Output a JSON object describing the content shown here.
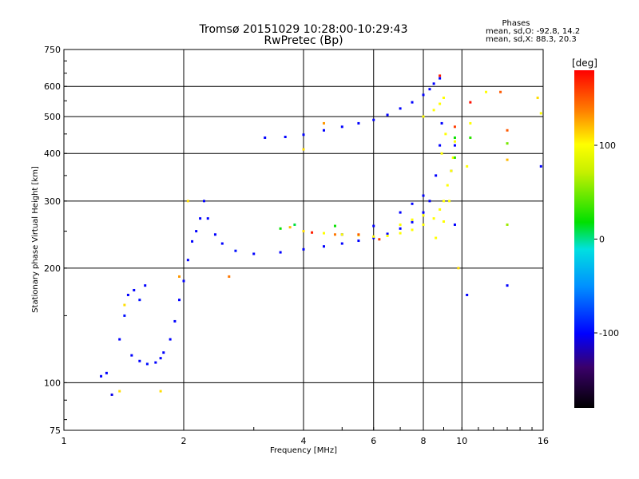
{
  "header": {
    "title": "Tromsø 20151029 10:28:00-10:29:43",
    "subtitle": "RwPretec (Bp)"
  },
  "stats": {
    "heading": "Phases",
    "line1": "mean, sd,O: -92.8, 14.2",
    "line2": "mean, sd,X: 88.3, 20.3"
  },
  "colorbar": {
    "unit": "[deg]",
    "ticks": [
      "100",
      "0",
      "-100"
    ],
    "tick_values": [
      100,
      0,
      -100
    ],
    "range": [
      -180,
      180
    ]
  },
  "chart_data": {
    "type": "scatter",
    "xlabel": "Frequency [MHz]",
    "ylabel": "Stationary phase Virtual Height [km]",
    "xscale": "log",
    "yscale": "log",
    "xlim": [
      1,
      16
    ],
    "ylim": [
      75,
      750
    ],
    "xticks": [
      1,
      2,
      4,
      6,
      8,
      10,
      16
    ],
    "xtick_labels": [
      "1",
      "2",
      "4",
      "6",
      "8",
      "10",
      "16"
    ],
    "yticks": [
      75,
      100,
      200,
      300,
      400,
      500,
      600,
      750
    ],
    "ytick_labels": [
      "75",
      "100",
      "200",
      "300",
      "400",
      "500",
      "600",
      "750"
    ],
    "grid": true,
    "series": [
      {
        "points": [
          [
            1.24,
            104,
            -100
          ],
          [
            1.28,
            106,
            -100
          ],
          [
            1.32,
            93,
            -105
          ],
          [
            1.38,
            130,
            -100
          ],
          [
            1.42,
            150,
            -95
          ],
          [
            1.45,
            170,
            -100
          ],
          [
            1.5,
            175,
            -100
          ],
          [
            1.55,
            165,
            -95
          ],
          [
            1.6,
            180,
            -100
          ],
          [
            1.48,
            118,
            -100
          ],
          [
            1.55,
            114,
            -100
          ],
          [
            1.62,
            112,
            -95
          ],
          [
            1.7,
            113,
            -100
          ],
          [
            1.75,
            116,
            -100
          ],
          [
            1.78,
            120,
            -100
          ],
          [
            1.85,
            130,
            -100
          ],
          [
            1.9,
            145,
            -100
          ],
          [
            1.95,
            165,
            -100
          ],
          [
            2.0,
            185,
            -100
          ],
          [
            2.05,
            210,
            -100
          ],
          [
            2.1,
            235,
            -100
          ],
          [
            2.15,
            250,
            -100
          ],
          [
            2.2,
            270,
            -100
          ],
          [
            2.25,
            300,
            -100
          ],
          [
            2.3,
            270,
            -100
          ],
          [
            2.4,
            245,
            -100
          ],
          [
            2.5,
            232,
            -100
          ],
          [
            2.7,
            222,
            -95
          ],
          [
            3.0,
            218,
            -100
          ],
          [
            3.5,
            220,
            -100
          ],
          [
            4.0,
            224,
            -100
          ],
          [
            4.5,
            228,
            -100
          ],
          [
            5.0,
            232,
            -100
          ],
          [
            5.5,
            236,
            -100
          ],
          [
            6.0,
            240,
            -100
          ],
          [
            6.5,
            246,
            -100
          ],
          [
            7.0,
            254,
            -100
          ],
          [
            7.5,
            264,
            -100
          ],
          [
            8.0,
            280,
            -100
          ],
          [
            8.3,
            300,
            -100
          ],
          [
            8.6,
            350,
            -100
          ],
          [
            8.8,
            420,
            -100
          ],
          [
            8.9,
            480,
            -100
          ],
          [
            5.0,
            245,
            -100
          ],
          [
            6.0,
            258,
            -100
          ],
          [
            7.0,
            280,
            -100
          ],
          [
            7.5,
            295,
            -100
          ],
          [
            8.0,
            310,
            -100
          ],
          [
            3.2,
            440,
            -100
          ],
          [
            3.6,
            442,
            -100
          ],
          [
            4.0,
            448,
            -100
          ],
          [
            4.5,
            460,
            -100
          ],
          [
            5.0,
            470,
            -100
          ],
          [
            5.5,
            480,
            -100
          ],
          [
            6.0,
            490,
            -100
          ],
          [
            6.5,
            505,
            -100
          ],
          [
            7.0,
            525,
            -100
          ],
          [
            7.5,
            545,
            -100
          ],
          [
            8.0,
            570,
            -100
          ],
          [
            8.3,
            590,
            -100
          ],
          [
            8.5,
            610,
            -100
          ],
          [
            8.8,
            630,
            -100
          ],
          [
            9.4,
            360,
            -100
          ],
          [
            9.6,
            420,
            -100
          ],
          [
            9.6,
            260,
            -100
          ],
          [
            10.3,
            170,
            -100
          ],
          [
            13.0,
            180,
            -100
          ],
          [
            15.8,
            370,
            -100
          ]
        ]
      },
      {
        "points": [
          [
            1.38,
            95,
            110
          ],
          [
            1.42,
            160,
            110
          ],
          [
            1.75,
            95,
            110
          ],
          [
            2.05,
            300,
            110
          ],
          [
            3.7,
            256,
            120
          ],
          [
            4.0,
            250,
            110
          ],
          [
            4.5,
            247,
            100
          ],
          [
            5.0,
            245,
            100
          ],
          [
            5.5,
            244,
            95
          ],
          [
            6.0,
            242,
            100
          ],
          [
            6.5,
            243,
            100
          ],
          [
            7.0,
            247,
            100
          ],
          [
            7.5,
            252,
            100
          ],
          [
            8.0,
            260,
            100
          ],
          [
            8.5,
            270,
            100
          ],
          [
            8.8,
            285,
            100
          ],
          [
            9.0,
            300,
            100
          ],
          [
            9.2,
            330,
            100
          ],
          [
            9.4,
            360,
            100
          ],
          [
            9.5,
            390,
            100
          ],
          [
            9.6,
            430,
            100
          ],
          [
            7.0,
            260,
            100
          ],
          [
            7.5,
            268,
            100
          ],
          [
            8.0,
            275,
            100
          ],
          [
            8.6,
            240,
            100
          ],
          [
            9.0,
            265,
            100
          ],
          [
            9.3,
            300,
            100
          ],
          [
            8.0,
            500,
            100
          ],
          [
            8.5,
            520,
            100
          ],
          [
            8.8,
            540,
            100
          ],
          [
            9.0,
            560,
            100
          ],
          [
            8.9,
            400,
            100
          ],
          [
            9.1,
            450,
            100
          ],
          [
            4.5,
            480,
            130
          ],
          [
            4.0,
            410,
            110
          ],
          [
            10.5,
            480,
            100
          ],
          [
            11.5,
            580,
            100
          ],
          [
            12.5,
            580,
            150
          ],
          [
            13.0,
            385,
            120
          ],
          [
            15.5,
            560,
            110
          ],
          [
            15.8,
            510,
            100
          ],
          [
            10.3,
            370,
            100
          ],
          [
            9.8,
            200,
            110
          ]
        ]
      },
      {
        "points": [
          [
            4.8,
            245,
            140
          ],
          [
            5.5,
            245,
            150
          ],
          [
            6.2,
            238,
            160
          ],
          [
            4.2,
            248,
            170
          ],
          [
            8.8,
            640,
            170
          ],
          [
            10.5,
            545,
            175
          ],
          [
            13.0,
            460,
            150
          ],
          [
            9.6,
            470,
            160
          ],
          [
            2.6,
            190,
            140
          ],
          [
            1.95,
            190,
            130
          ]
        ]
      },
      {
        "points": [
          [
            3.5,
            254,
            20
          ],
          [
            3.8,
            260,
            10
          ],
          [
            4.8,
            258,
            20
          ],
          [
            9.6,
            390,
            30
          ],
          [
            13.0,
            425,
            50
          ],
          [
            13.0,
            260,
            60
          ],
          [
            10.5,
            440,
            30
          ],
          [
            9.6,
            440,
            20
          ]
        ]
      }
    ]
  }
}
